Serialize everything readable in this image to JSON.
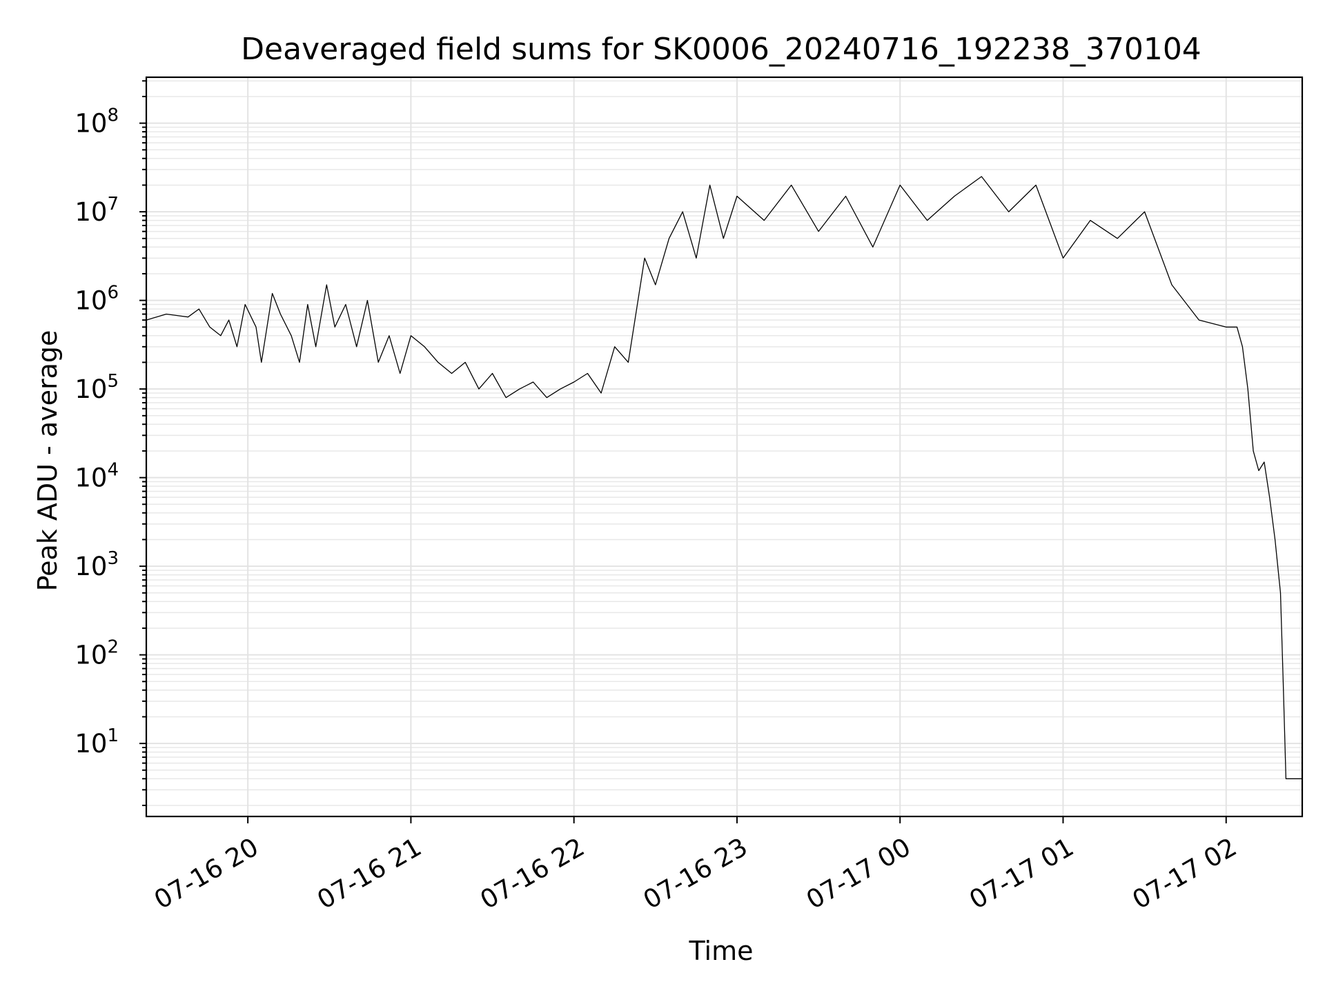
{
  "chart_data": {
    "type": "line",
    "title": "Deaveraged field sums for SK0006_20240716_192238_370104",
    "xlabel": "Time",
    "ylabel": "Peak ADU - average",
    "yscale": "log",
    "grid": "on (major and minor)",
    "legend": "none",
    "xlim": [
      "2024-07-16 19:22:38",
      "2024-07-17 02:28:00"
    ],
    "ylim": [
      1.5,
      330000000
    ],
    "x_ticks": [
      "2024-07-16 20:00",
      "2024-07-16 21:00",
      "2024-07-16 22:00",
      "2024-07-16 23:00",
      "2024-07-17 00:00",
      "2024-07-17 01:00",
      "2024-07-17 02:00"
    ],
    "x_tick_labels": [
      "07-16 20",
      "07-16 21",
      "07-16 22",
      "07-16 23",
      "07-17 00",
      "07-17 01",
      "07-17 02"
    ],
    "y_tick_labels": [
      {
        "value": 10,
        "base": "10",
        "exp": "1"
      },
      {
        "value": 100,
        "base": "10",
        "exp": "2"
      },
      {
        "value": 1000,
        "base": "10",
        "exp": "3"
      },
      {
        "value": 10000,
        "base": "10",
        "exp": "4"
      },
      {
        "value": 100000,
        "base": "10",
        "exp": "5"
      },
      {
        "value": 1000000,
        "base": "10",
        "exp": "6"
      },
      {
        "value": 10000000,
        "base": "10",
        "exp": "7"
      },
      {
        "value": 100000000,
        "base": "10",
        "exp": "8"
      }
    ],
    "series": [
      {
        "color": "#000000",
        "x": [
          "2024-07-16 19:22:38",
          "2024-07-16 19:30",
          "2024-07-16 19:38",
          "2024-07-16 19:42",
          "2024-07-16 19:46",
          "2024-07-16 19:50",
          "2024-07-16 19:53",
          "2024-07-16 19:56",
          "2024-07-16 19:59",
          "2024-07-16 20:03",
          "2024-07-16 20:05",
          "2024-07-16 20:09",
          "2024-07-16 20:12",
          "2024-07-16 20:16",
          "2024-07-16 20:19",
          "2024-07-16 20:22",
          "2024-07-16 20:25",
          "2024-07-16 20:29",
          "2024-07-16 20:32",
          "2024-07-16 20:36",
          "2024-07-16 20:40",
          "2024-07-16 20:44",
          "2024-07-16 20:48",
          "2024-07-16 20:52",
          "2024-07-16 20:56",
          "2024-07-16 21:00",
          "2024-07-16 21:05",
          "2024-07-16 21:10",
          "2024-07-16 21:15",
          "2024-07-16 21:20",
          "2024-07-16 21:25",
          "2024-07-16 21:30",
          "2024-07-16 21:35",
          "2024-07-16 21:40",
          "2024-07-16 21:45",
          "2024-07-16 21:50",
          "2024-07-16 21:55",
          "2024-07-16 22:00",
          "2024-07-16 22:05",
          "2024-07-16 22:10",
          "2024-07-16 22:15",
          "2024-07-16 22:20",
          "2024-07-16 22:26",
          "2024-07-16 22:30",
          "2024-07-16 22:35",
          "2024-07-16 22:40",
          "2024-07-16 22:45",
          "2024-07-16 22:50",
          "2024-07-16 22:55",
          "2024-07-16 23:00",
          "2024-07-16 23:10",
          "2024-07-16 23:20",
          "2024-07-16 23:30",
          "2024-07-16 23:40",
          "2024-07-16 23:50",
          "2024-07-17 00:00",
          "2024-07-17 00:10",
          "2024-07-17 00:20",
          "2024-07-17 00:30",
          "2024-07-17 00:40",
          "2024-07-17 00:50",
          "2024-07-17 01:00",
          "2024-07-17 01:10",
          "2024-07-17 01:20",
          "2024-07-17 01:30",
          "2024-07-17 01:40",
          "2024-07-17 01:50",
          "2024-07-17 02:00",
          "2024-07-17 02:04",
          "2024-07-17 02:06",
          "2024-07-17 02:08",
          "2024-07-17 02:10",
          "2024-07-17 02:12",
          "2024-07-17 02:14",
          "2024-07-17 02:16",
          "2024-07-17 02:18",
          "2024-07-17 02:20",
          "2024-07-17 02:21",
          "2024-07-17 02:22",
          "2024-07-17 02:23",
          "2024-07-17 02:24",
          "2024-07-17 02:26",
          "2024-07-17 02:28"
        ],
        "y": [
          600000,
          700000,
          650000,
          800000,
          500000,
          400000,
          600000,
          300000,
          900000,
          500000,
          200000,
          1200000,
          700000,
          400000,
          200000,
          900000,
          300000,
          1500000,
          500000,
          900000,
          300000,
          1000000,
          200000,
          400000,
          150000,
          400000,
          300000,
          200000,
          150000,
          200000,
          100000,
          150000,
          80000,
          100000,
          120000,
          80000,
          100000,
          120000,
          150000,
          90000,
          300000,
          200000,
          3000000,
          1500000,
          5000000,
          10000000,
          3000000,
          20000000,
          5000000,
          15000000,
          8000000,
          20000000,
          6000000,
          15000000,
          4000000,
          20000000,
          8000000,
          15000000,
          25000000,
          10000000,
          20000000,
          3000000,
          8000000,
          5000000,
          10000000,
          1500000,
          600000,
          500000,
          500000,
          300000,
          100000,
          20000,
          12000,
          15000,
          6000,
          2000,
          500,
          50,
          4,
          4,
          4,
          4,
          4
        ]
      }
    ]
  }
}
